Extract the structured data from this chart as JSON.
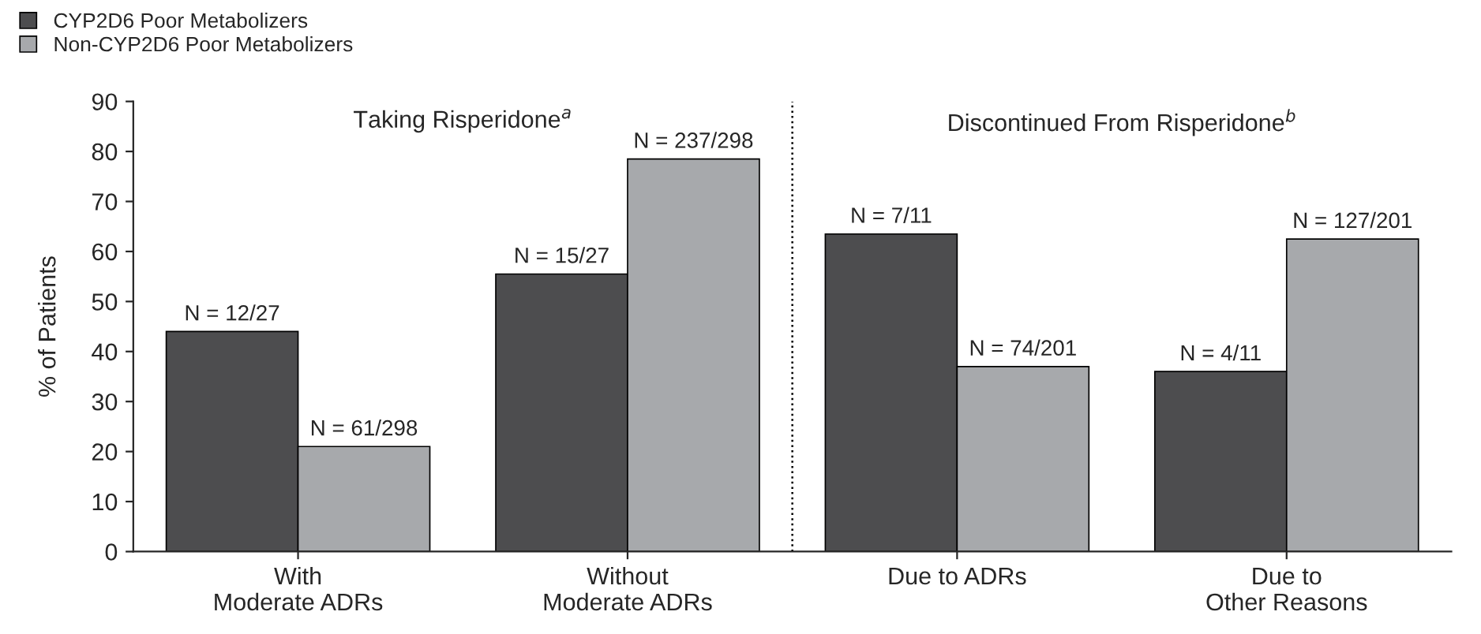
{
  "chart_data": {
    "type": "bar",
    "categories": [
      "With\nModerate ADRs",
      "Without\nModerate ADRs",
      "Due to ADRs",
      "Due to\nOther Reasons"
    ],
    "series": [
      {
        "name": "CYP2D6 Poor Metabolizers",
        "color": "#4d4d4f",
        "values": [
          44,
          55.5,
          63.5,
          36
        ],
        "value_labels": [
          "N = 12/27",
          "N = 15/27",
          "N = 7/11",
          "N = 4/11"
        ]
      },
      {
        "name": "Non-CYP2D6 Poor Metabolizers",
        "color": "#a7a9ac",
        "values": [
          21,
          78.5,
          37,
          62.5
        ],
        "value_labels": [
          "N = 61/298",
          "N = 237/298",
          "N = 74/201",
          "N = 127/201"
        ]
      }
    ],
    "ylabel": "% of Patients",
    "ylim": [
      0,
      90
    ],
    "yticks": [
      0,
      10,
      20,
      30,
      40,
      50,
      60,
      70,
      80,
      90
    ],
    "annotations": [
      "Taking Risperidone$^{a}$",
      "Discontinued From Risperidone$^{b}$"
    ],
    "legend": "top left",
    "grid": false
  }
}
